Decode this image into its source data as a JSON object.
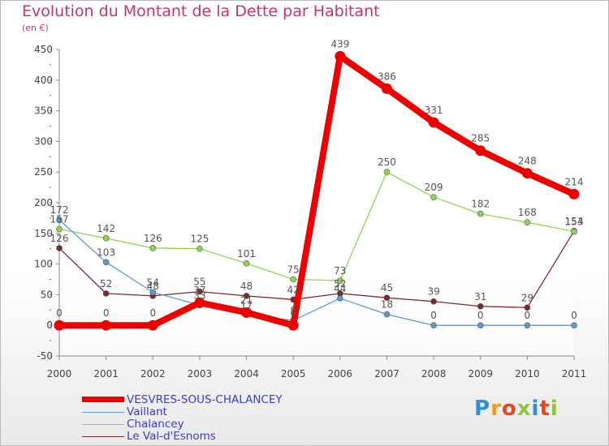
{
  "title": "Evolution du Montant de la Dette par Habitant",
  "subtitle": "(en €)",
  "logo": {
    "text": "Proxiti",
    "colors": [
      "#2f8fd6",
      "#f39a1e",
      "#e8451d",
      "#8cc63e",
      "#2f8fd6",
      "#e8451d",
      "#8cc63e"
    ]
  },
  "chart_data": {
    "type": "line",
    "x": [
      "2000",
      "2001",
      "2002",
      "2003",
      "2004",
      "2005",
      "2006",
      "2007",
      "2008",
      "2009",
      "2010",
      "2011"
    ],
    "ylim": [
      -50,
      450
    ],
    "yticks": [
      "-50",
      "0",
      "50",
      "100",
      "150",
      "200",
      "250",
      "300",
      "350",
      "400",
      "450"
    ],
    "grid": false,
    "legend_position": "bottom-left",
    "series": [
      {
        "name": "VESVRES-SOUS-CHALANCEY",
        "color": "#ee0000",
        "values": [
          0,
          0,
          0,
          37,
          21,
          0,
          439,
          386,
          331,
          285,
          248,
          214
        ],
        "labels": [
          "0",
          "0",
          "0",
          "37",
          "21",
          "0",
          "439",
          "386",
          "331",
          "285",
          "248",
          "214"
        ]
      },
      {
        "name": "Vaillant",
        "color": "#5b9bd5",
        "values": [
          172,
          103,
          54,
          33,
          17,
          8,
          44,
          18,
          0,
          0,
          0,
          0
        ],
        "labels": [
          "172",
          "103",
          "54",
          "33",
          "17",
          "8",
          "44",
          "18",
          "0",
          "0",
          "0",
          "0"
        ]
      },
      {
        "name": "Chalancey",
        "color": "#8fd454",
        "values": [
          157,
          142,
          126,
          125,
          101,
          75,
          73,
          250,
          209,
          182,
          168,
          153
        ],
        "labels": [
          "157",
          "142",
          "126",
          "125",
          "101",
          "75",
          "73",
          "250",
          "209",
          "182",
          "168",
          "153"
        ]
      },
      {
        "name": "Le Val-d'Esnoms",
        "color": "#7a2b2b",
        "values": [
          126,
          52,
          48,
          55,
          48,
          42,
          52,
          45,
          39,
          31,
          29,
          154
        ],
        "labels": [
          "126",
          "52",
          "48",
          "55",
          "48",
          "42",
          "52",
          "45",
          "39",
          "31",
          "29",
          "154"
        ]
      }
    ]
  }
}
